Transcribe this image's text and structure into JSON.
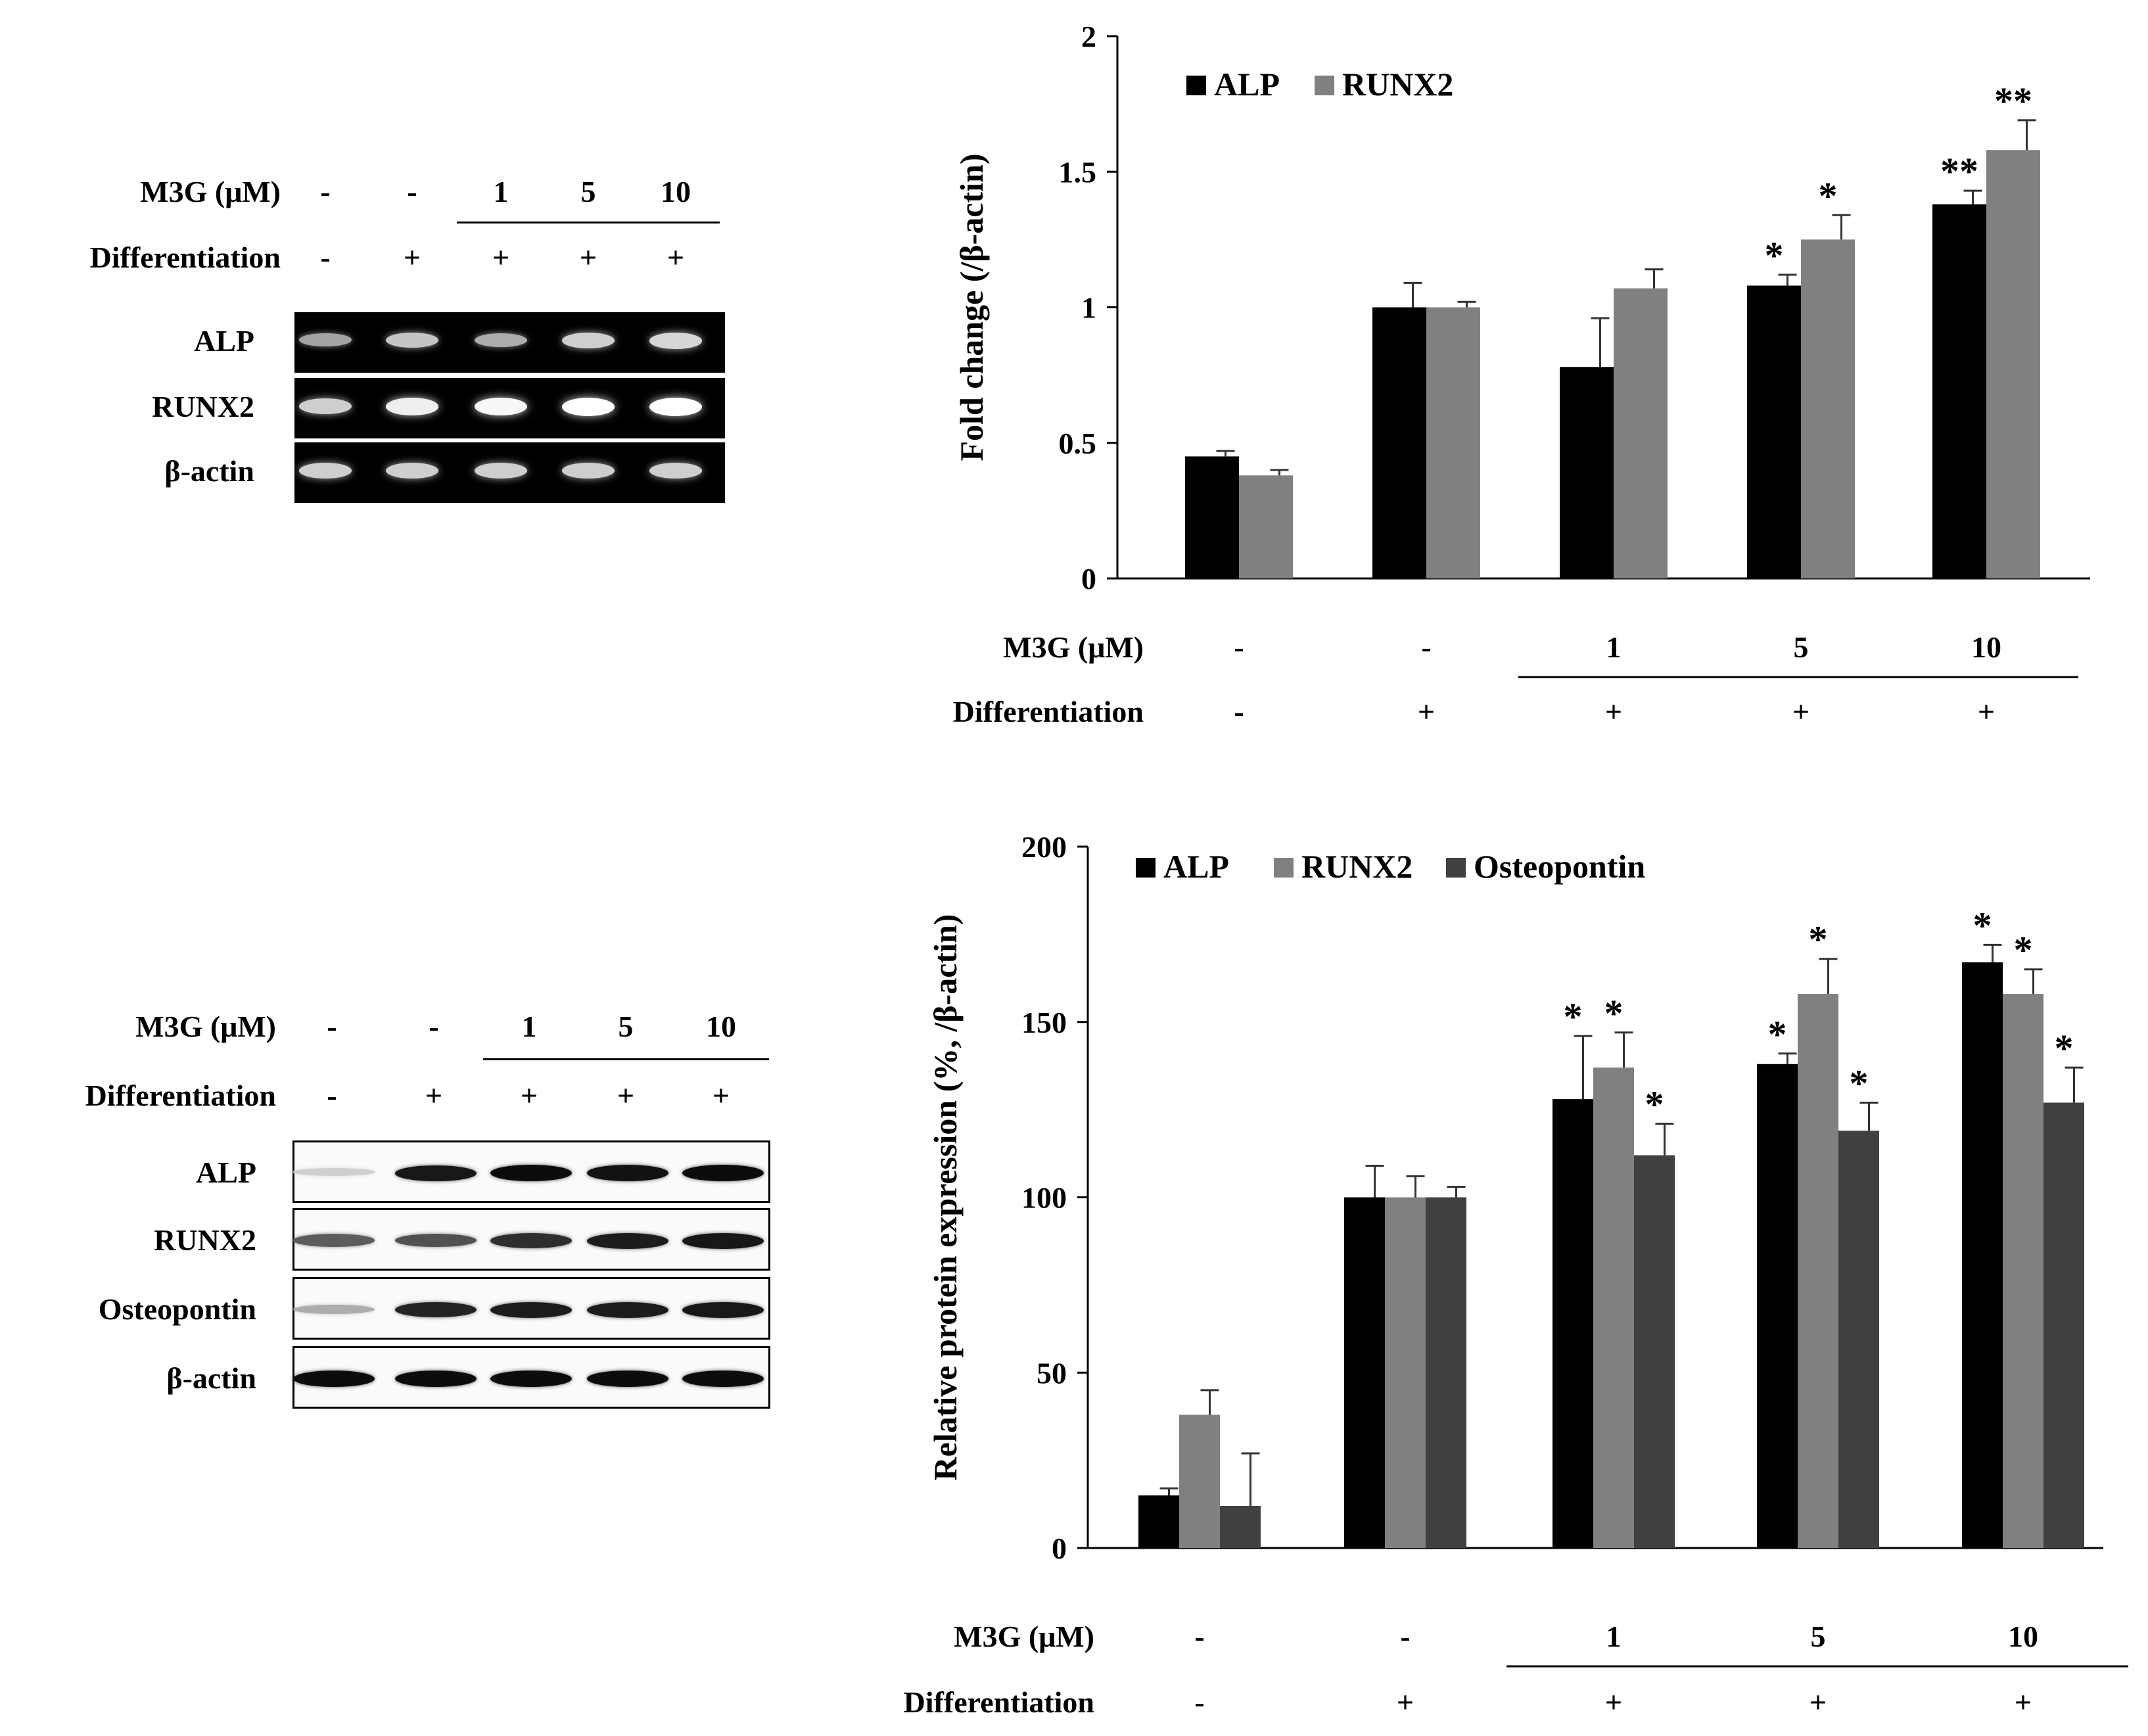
{
  "rt_pcr_gel": {
    "m3g_label": "M3G (μM)",
    "diff_label": "Differentiation",
    "m3g_values": [
      "-",
      "-",
      "1",
      "5",
      "10"
    ],
    "diff_values": [
      "-",
      "+",
      "+",
      "+",
      "+"
    ],
    "rows": [
      {
        "label": "ALP",
        "intensities": [
          0.45,
          0.65,
          0.5,
          0.7,
          0.75
        ]
      },
      {
        "label": "RUNX2",
        "intensities": [
          0.7,
          0.9,
          0.95,
          1.0,
          1.0
        ]
      },
      {
        "label": "β-actin",
        "intensities": [
          0.7,
          0.7,
          0.7,
          0.7,
          0.7
        ]
      }
    ]
  },
  "western_blot": {
    "m3g_label": "M3G (μM)",
    "diff_label": "Differentiation",
    "m3g_values": [
      "-",
      "-",
      "1",
      "5",
      "10"
    ],
    "diff_values": [
      "-",
      "+",
      "+",
      "+",
      "+"
    ],
    "rows": [
      {
        "label": "ALP",
        "intensities": [
          0.1,
          0.9,
          0.95,
          0.92,
          0.95
        ]
      },
      {
        "label": "RUNX2",
        "intensities": [
          0.6,
          0.65,
          0.8,
          0.88,
          0.9
        ]
      },
      {
        "label": "Osteopontin",
        "intensities": [
          0.25,
          0.85,
          0.88,
          0.88,
          0.9
        ]
      },
      {
        "label": "β-actin",
        "intensities": [
          0.95,
          0.95,
          0.95,
          0.95,
          0.95
        ]
      }
    ]
  },
  "chart_data": [
    {
      "type": "bar",
      "ylabel": "Fold change (/β-actin)",
      "ylim": [
        0,
        2
      ],
      "yticks": [
        0,
        0.5,
        1,
        1.5,
        2
      ],
      "ytick_labels": [
        "0",
        "0.5",
        "1",
        "1.5",
        "2"
      ],
      "categories": [
        "-/-",
        "-/+",
        "1/+",
        "5/+",
        "10/+"
      ],
      "series": [
        {
          "name": "ALP",
          "color": "#000000",
          "values": [
            0.45,
            1.0,
            0.78,
            1.08,
            1.38
          ],
          "errors": [
            0.02,
            0.09,
            0.18,
            0.04,
            0.05
          ],
          "sig": [
            "",
            "",
            "",
            "*",
            "**"
          ]
        },
        {
          "name": "RUNX2",
          "color": "#808080",
          "values": [
            0.38,
            1.0,
            1.07,
            1.25,
            1.58
          ],
          "errors": [
            0.02,
            0.02,
            0.07,
            0.09,
            0.11
          ],
          "sig": [
            "",
            "",
            "",
            "*",
            "**"
          ]
        }
      ],
      "m3g_label": "M3G (μM)",
      "diff_label": "Differentiation",
      "m3g_values": [
        "-",
        "-",
        "1",
        "5",
        "10"
      ],
      "diff_values": [
        "-",
        "+",
        "+",
        "+",
        "+"
      ]
    },
    {
      "type": "bar",
      "ylabel": "Relative protein expression (%, /β-actin)",
      "ylim": [
        0,
        200
      ],
      "yticks": [
        0,
        50,
        100,
        150,
        200
      ],
      "ytick_labels": [
        "0",
        "50",
        "100",
        "150",
        "200"
      ],
      "categories": [
        "-/-",
        "-/+",
        "1/+",
        "5/+",
        "10/+"
      ],
      "series": [
        {
          "name": "ALP",
          "color": "#000000",
          "values": [
            15,
            100,
            128,
            138,
            167
          ],
          "errors": [
            2,
            9,
            18,
            3,
            5
          ],
          "sig": [
            "",
            "",
            "*",
            "*",
            "*"
          ]
        },
        {
          "name": "RUNX2",
          "color": "#808080",
          "values": [
            38,
            100,
            137,
            158,
            158
          ],
          "errors": [
            7,
            6,
            10,
            10,
            7
          ],
          "sig": [
            "",
            "",
            "*",
            "*",
            "*"
          ]
        },
        {
          "name": "Osteopontin",
          "color": "#404040",
          "values": [
            12,
            100,
            112,
            119,
            127
          ],
          "errors": [
            15,
            3,
            9,
            8,
            10
          ],
          "sig": [
            "",
            "",
            "*",
            "*",
            "*"
          ]
        }
      ],
      "m3g_label": "M3G (μM)",
      "diff_label": "Differentiation",
      "m3g_values": [
        "-",
        "-",
        "1",
        "5",
        "10"
      ],
      "diff_values": [
        "-",
        "+",
        "+",
        "+",
        "+"
      ]
    }
  ]
}
